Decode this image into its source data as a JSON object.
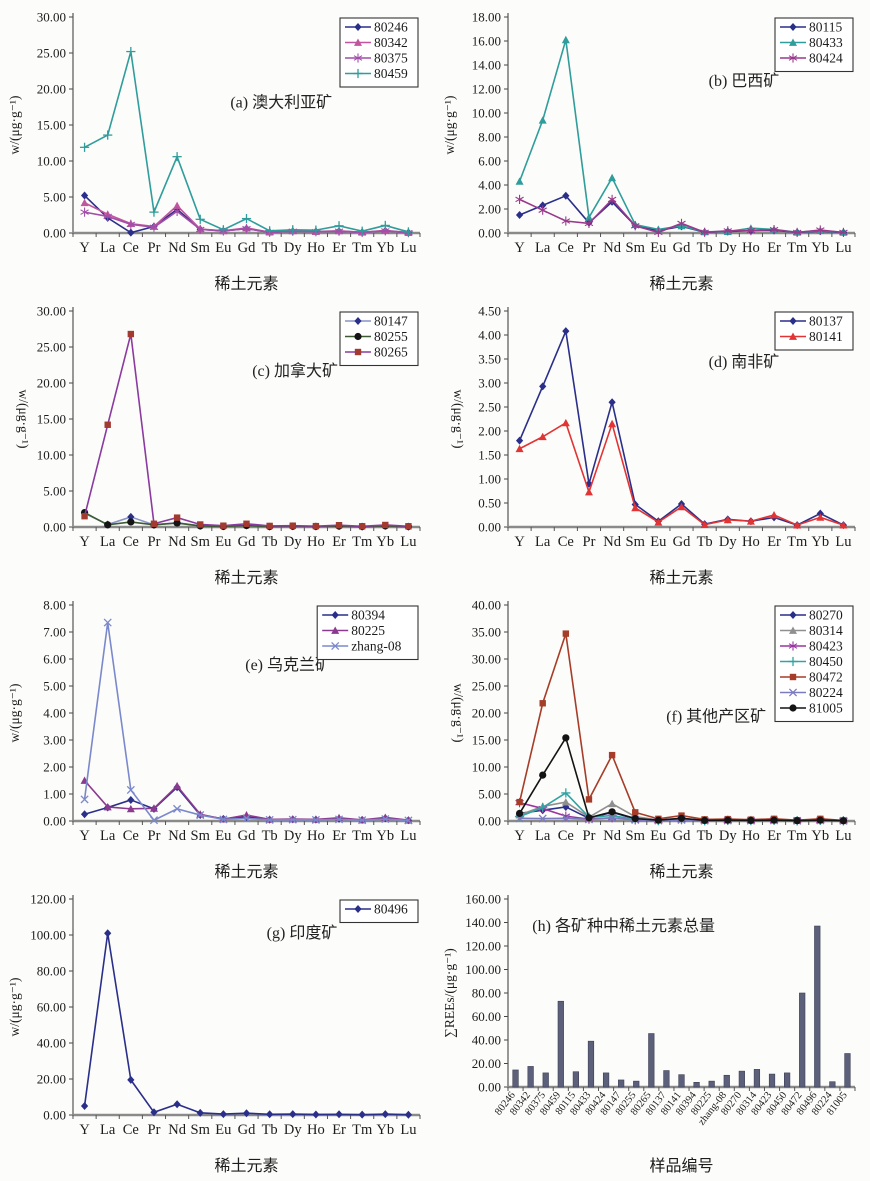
{
  "page": {
    "background": "#fcfcfa"
  },
  "chart_data": [
    {
      "id": "a",
      "type": "line",
      "title": "(a) 澳大利亚矿",
      "title_x": 0.6,
      "title_y": 0.42,
      "xlabel": "稀土元素",
      "ylabel": "w/(μg·g⁻¹)",
      "ylabel_flip": false,
      "categories": [
        "Y",
        "La",
        "Ce",
        "Pr",
        "Nd",
        "Sm",
        "Eu",
        "Gd",
        "Tb",
        "Dy",
        "Ho",
        "Er",
        "Tm",
        "Yb",
        "Lu"
      ],
      "ylim": [
        0,
        30
      ],
      "ystep": 5,
      "grid": false,
      "legend_position": "top-right",
      "series": [
        {
          "name": "80246",
          "color": "#2A2F8A",
          "marker": "diamond",
          "values": [
            5.2,
            2.1,
            0.05,
            0.9,
            3.3,
            0.5,
            0.3,
            0.6,
            0.1,
            0.25,
            0.2,
            0.25,
            0.1,
            0.3,
            0.05
          ]
        },
        {
          "name": "80342",
          "color": "#C1569E",
          "marker": "triangle",
          "values": [
            4.2,
            2.6,
            1.3,
            0.9,
            3.8,
            0.55,
            0.3,
            0.7,
            0.12,
            0.3,
            0.2,
            0.3,
            0.1,
            0.35,
            0.06
          ]
        },
        {
          "name": "80375",
          "color": "#A14FA8",
          "marker": "asterisk",
          "values": [
            2.9,
            2.3,
            1.2,
            0.8,
            3.0,
            0.5,
            0.28,
            0.6,
            0.1,
            0.25,
            0.18,
            0.25,
            0.08,
            0.3,
            0.05
          ]
        },
        {
          "name": "80459",
          "color": "#2F9D9B",
          "marker": "plus",
          "values": [
            11.9,
            13.6,
            25.2,
            2.9,
            10.6,
            1.9,
            0.45,
            2.0,
            0.3,
            0.45,
            0.4,
            1.0,
            0.25,
            1.05,
            0.15
          ]
        }
      ]
    },
    {
      "id": "b",
      "type": "line",
      "title": "(b) 巴西矿",
      "title_x": 0.68,
      "title_y": 0.32,
      "xlabel": "稀土元素",
      "ylabel": "w/(μg·g⁻¹)",
      "ylabel_flip": false,
      "categories": [
        "Y",
        "La",
        "Ce",
        "Pr",
        "Nd",
        "Sm",
        "Eu",
        "Gd",
        "Tb",
        "Dy",
        "Ho",
        "Er",
        "Tm",
        "Yb",
        "Lu"
      ],
      "ylim": [
        0,
        18
      ],
      "ystep": 2,
      "grid": false,
      "legend_position": "top-right",
      "series": [
        {
          "name": "80115",
          "color": "#2A2F8A",
          "marker": "diamond",
          "values": [
            1.5,
            2.3,
            3.1,
            0.85,
            2.6,
            0.6,
            0.2,
            0.55,
            0.07,
            0.12,
            0.2,
            0.22,
            0.05,
            0.15,
            0.04
          ]
        },
        {
          "name": "80433",
          "color": "#2F9D9B",
          "marker": "triangle",
          "values": [
            4.3,
            9.4,
            16.1,
            1.3,
            4.6,
            0.7,
            0.3,
            0.6,
            0.1,
            0.12,
            0.4,
            0.3,
            0.06,
            0.2,
            0.05
          ]
        },
        {
          "name": "80424",
          "color": "#99398C",
          "marker": "asterisk",
          "values": [
            2.8,
            1.9,
            1.0,
            0.8,
            2.8,
            0.6,
            0.05,
            0.8,
            0.06,
            0.18,
            0.2,
            0.28,
            0.05,
            0.25,
            0.05
          ]
        }
      ]
    },
    {
      "id": "c",
      "type": "line",
      "title": "(c) 加拿大矿",
      "title_x": 0.64,
      "title_y": 0.3,
      "xlabel": "稀土元素",
      "ylabel": "w/(μg·g⁻¹)",
      "ylabel_flip": true,
      "categories": [
        "Y",
        "La",
        "Ce",
        "Pr",
        "Nd",
        "Sm",
        "Eu",
        "Gd",
        "Tb",
        "Dy",
        "Ho",
        "Er",
        "Tm",
        "Yb",
        "Lu"
      ],
      "ylim": [
        0,
        30
      ],
      "ystep": 5,
      "grid": false,
      "legend_position": "top-right",
      "series": [
        {
          "name": "80147",
          "color": "#8A94C8",
          "marker": "diamond",
          "marker_color": "#2A2F8A",
          "values": [
            1.9,
            0.35,
            1.4,
            0.3,
            0.6,
            0.15,
            0.08,
            0.2,
            0.06,
            0.1,
            0.07,
            0.12,
            0.05,
            0.15,
            0.05
          ]
        },
        {
          "name": "80255",
          "color": "#3D5B33",
          "marker": "circle",
          "marker_color": "#151515",
          "values": [
            2.0,
            0.3,
            0.7,
            0.3,
            0.55,
            0.15,
            0.08,
            0.2,
            0.06,
            0.1,
            0.07,
            0.12,
            0.05,
            0.15,
            0.05
          ]
        },
        {
          "name": "80265",
          "color": "#8B3AA0",
          "marker": "square",
          "marker_color": "#A23A30",
          "values": [
            1.5,
            14.2,
            26.8,
            0.45,
            1.3,
            0.35,
            0.18,
            0.45,
            0.15,
            0.18,
            0.12,
            0.25,
            0.1,
            0.28,
            0.1
          ]
        }
      ]
    },
    {
      "id": "d",
      "type": "line",
      "title": "(d) 南非矿",
      "title_x": 0.68,
      "title_y": 0.26,
      "xlabel": "稀土元素",
      "ylabel": "w/(μg·g⁻¹)",
      "ylabel_flip": true,
      "categories": [
        "Y",
        "La",
        "Ce",
        "Pr",
        "Nd",
        "Sm",
        "Eu",
        "Gd",
        "Tb",
        "Dy",
        "Ho",
        "Er",
        "Tm",
        "Yb",
        "Lu"
      ],
      "ylim": [
        0,
        4.5
      ],
      "ystep": 0.5,
      "grid": false,
      "legend_position": "top-right",
      "series": [
        {
          "name": "80137",
          "color": "#2A2F8A",
          "marker": "diamond",
          "values": [
            1.8,
            2.93,
            4.08,
            0.9,
            2.6,
            0.47,
            0.12,
            0.48,
            0.06,
            0.16,
            0.12,
            0.2,
            0.04,
            0.28,
            0.04
          ]
        },
        {
          "name": "80141",
          "color": "#E23434",
          "marker": "triangle",
          "values": [
            1.63,
            1.88,
            2.17,
            0.73,
            2.15,
            0.4,
            0.1,
            0.42,
            0.05,
            0.15,
            0.12,
            0.25,
            0.04,
            0.2,
            0.04
          ]
        }
      ]
    },
    {
      "id": "e",
      "type": "line",
      "title": "(e) 乌克兰矿",
      "title_x": 0.62,
      "title_y": 0.3,
      "xlabel": "稀土元素",
      "ylabel": "w/(μg·g⁻¹)",
      "ylabel_flip": false,
      "categories": [
        "Y",
        "La",
        "Ce",
        "Pr",
        "Nd",
        "Sm",
        "Eu",
        "Gd",
        "Tb",
        "Dy",
        "Ho",
        "Er",
        "Tm",
        "Yb",
        "Lu"
      ],
      "ylim": [
        0,
        8
      ],
      "ystep": 1,
      "grid": false,
      "legend_position": "top-right",
      "series": [
        {
          "name": "80394",
          "color": "#2A2F8A",
          "marker": "diamond",
          "values": [
            0.25,
            0.5,
            0.78,
            0.45,
            1.25,
            0.22,
            0.08,
            0.15,
            0.05,
            0.06,
            0.05,
            0.08,
            0.04,
            0.1,
            0.03
          ]
        },
        {
          "name": "80225",
          "color": "#8B3A8F",
          "marker": "triangle",
          "values": [
            1.5,
            0.52,
            0.45,
            0.47,
            1.3,
            0.25,
            0.07,
            0.22,
            0.06,
            0.07,
            0.06,
            0.12,
            0.04,
            0.13,
            0.03
          ]
        },
        {
          "name": "zhang-08",
          "color": "#7B89CC",
          "marker": "x",
          "values": [
            0.8,
            7.35,
            1.15,
            0.03,
            0.45,
            0.22,
            0.06,
            0.1,
            0.04,
            0.05,
            0.04,
            0.06,
            0.03,
            0.07,
            0.02
          ]
        }
      ]
    },
    {
      "id": "f",
      "type": "line",
      "title": "(f) 其他产区矿",
      "title_x": 0.6,
      "title_y": 0.54,
      "xlabel": "稀土元素",
      "ylabel": "w/(μg·g⁻¹)",
      "ylabel_flip": true,
      "categories": [
        "Y",
        "La",
        "Ce",
        "Pr",
        "Nd",
        "Sm",
        "Eu",
        "Gd",
        "Tb",
        "Dy",
        "Ho",
        "Er",
        "Tm",
        "Yb",
        "Lu"
      ],
      "ylim": [
        0,
        40
      ],
      "ystep": 5,
      "grid": false,
      "legend_position": "top-right",
      "series": [
        {
          "name": "80270",
          "color": "#2A2F8A",
          "marker": "diamond",
          "values": [
            1.4,
            2.0,
            2.6,
            0.5,
            1.6,
            0.4,
            0.12,
            0.35,
            0.08,
            0.12,
            0.1,
            0.15,
            0.06,
            0.15,
            0.05
          ]
        },
        {
          "name": "80314",
          "color": "#8F8F8F",
          "marker": "triangle",
          "values": [
            1.1,
            2.7,
            3.5,
            0.7,
            3.2,
            0.8,
            0.2,
            0.5,
            0.1,
            0.2,
            0.12,
            0.2,
            0.08,
            0.2,
            0.06
          ]
        },
        {
          "name": "80423",
          "color": "#9A35A0",
          "marker": "asterisk",
          "values": [
            3.4,
            2.3,
            0.9,
            0.35,
            0.6,
            0.2,
            0.08,
            0.25,
            0.06,
            0.1,
            0.08,
            0.12,
            0.05,
            0.12,
            0.04
          ]
        },
        {
          "name": "80450",
          "color": "#33A3A3",
          "marker": "plus",
          "values": [
            0.8,
            2.5,
            5.2,
            0.7,
            1.0,
            0.3,
            0.1,
            0.3,
            0.07,
            0.12,
            0.09,
            0.13,
            0.05,
            0.13,
            0.04
          ]
        },
        {
          "name": "80472",
          "color": "#A63D28",
          "marker": "square",
          "values": [
            3.5,
            21.8,
            34.7,
            4.0,
            12.2,
            1.6,
            0.4,
            1.0,
            0.3,
            0.35,
            0.25,
            0.4,
            0.15,
            0.4,
            0.1
          ]
        },
        {
          "name": "80224",
          "color": "#7B7BC0",
          "marker": "x",
          "values": [
            0.5,
            0.45,
            0.5,
            0.3,
            0.55,
            0.2,
            0.07,
            0.2,
            0.05,
            0.08,
            0.06,
            0.1,
            0.04,
            0.1,
            0.03
          ]
        },
        {
          "name": "81005",
          "color": "#141414",
          "marker": "circle",
          "values": [
            1.4,
            8.5,
            15.4,
            0.6,
            1.7,
            0.45,
            0.15,
            0.5,
            0.1,
            0.15,
            0.1,
            0.15,
            0.06,
            0.15,
            0.05
          ]
        }
      ]
    },
    {
      "id": "g",
      "type": "line",
      "title": "(g) 印度矿",
      "title_x": 0.66,
      "title_y": 0.18,
      "xlabel": "稀土元素",
      "ylabel": "w/(μg·g⁻¹)",
      "ylabel_flip": false,
      "categories": [
        "Y",
        "La",
        "Ce",
        "Pr",
        "Nd",
        "Sm",
        "Eu",
        "Gd",
        "Tb",
        "Dy",
        "Ho",
        "Er",
        "Tm",
        "Yb",
        "Lu"
      ],
      "ylim": [
        0,
        120
      ],
      "ystep": 20,
      "grid": false,
      "legend_position": "top-right",
      "series": [
        {
          "name": "80496",
          "color": "#2A2F8A",
          "marker": "diamond",
          "values": [
            5.0,
            101.0,
            19.5,
            1.5,
            6.0,
            1.2,
            0.5,
            1.0,
            0.4,
            0.5,
            0.3,
            0.4,
            0.2,
            0.5,
            0.15
          ]
        }
      ]
    },
    {
      "id": "h",
      "type": "bar",
      "title": "(h) 各矿种中稀土元素总量",
      "title_x": 0.07,
      "title_y": 0.17,
      "title_anchor": "start",
      "xlabel": "样品编号",
      "ylabel": "∑REEs/(μg·g⁻¹)",
      "ylabel_flip": false,
      "categories": [
        "80246",
        "80342",
        "80375",
        "80459",
        "80115",
        "80433",
        "80424",
        "80147",
        "80255",
        "80265",
        "80137",
        "80141",
        "80394",
        "80225",
        "zhang-08",
        "80270",
        "80314",
        "80423",
        "80450",
        "80472",
        "80496",
        "80224",
        "81005"
      ],
      "values": [
        14.5,
        17.5,
        12.0,
        73.0,
        13.0,
        39.0,
        12.0,
        6.0,
        5.0,
        45.5,
        14.0,
        10.5,
        4.0,
        5.0,
        10.0,
        13.5,
        15.0,
        11.0,
        12.0,
        80.0,
        137.0,
        4.5,
        28.5
      ],
      "ylim": [
        0,
        160
      ],
      "ystep": 20,
      "grid": false,
      "bar_color": "#5C607B"
    }
  ]
}
